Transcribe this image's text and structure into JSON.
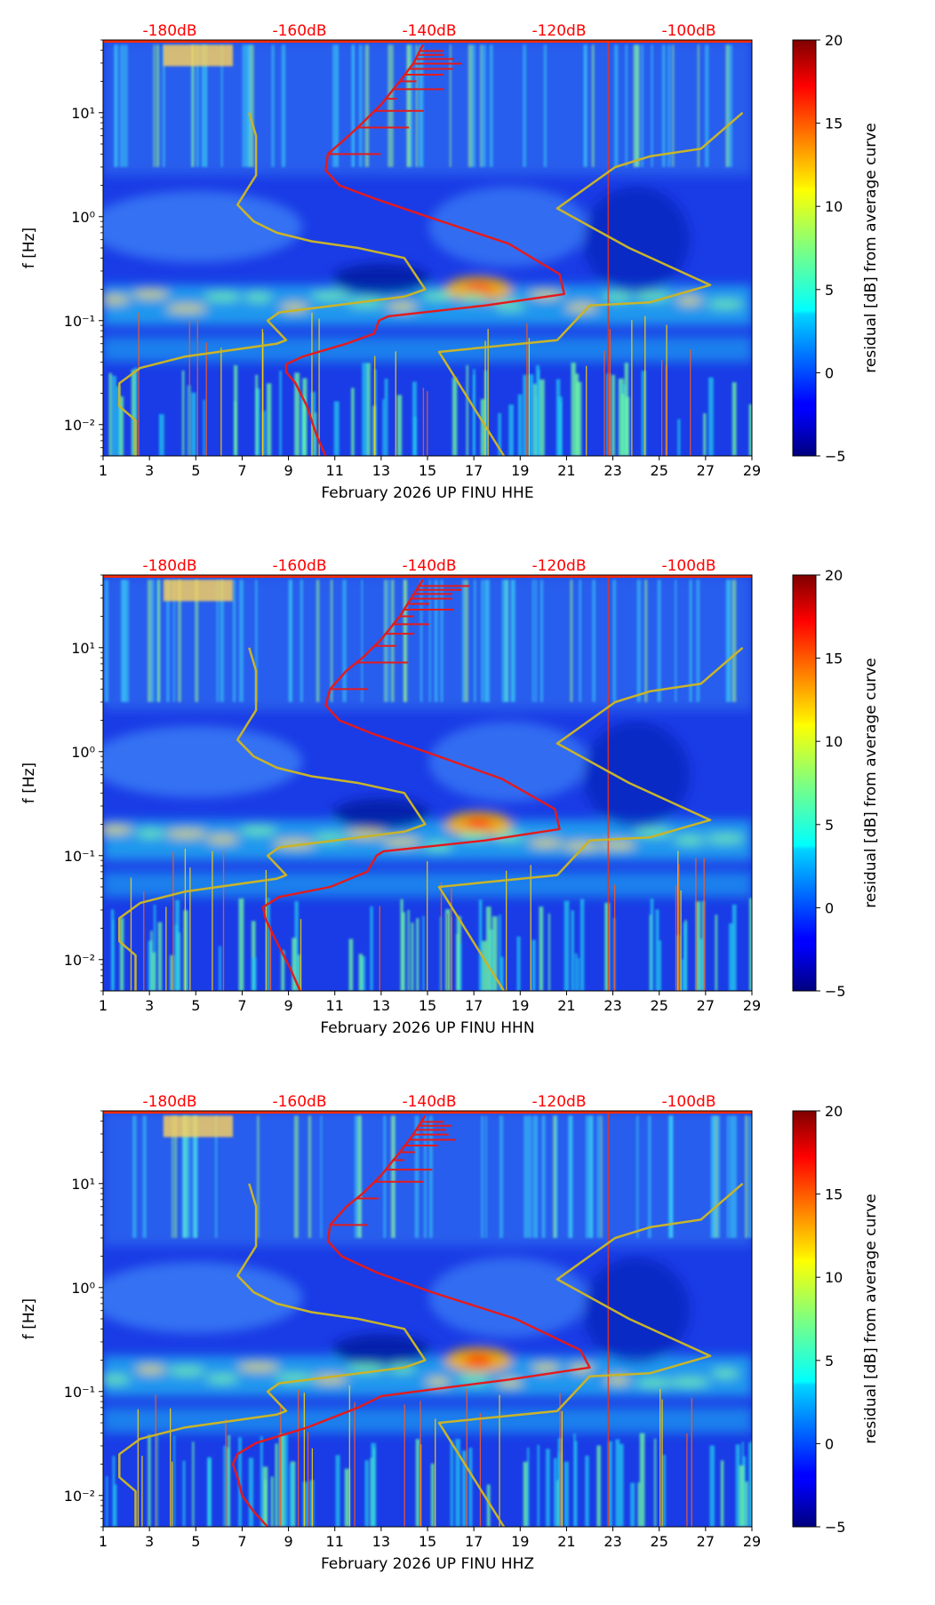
{
  "page": {
    "background": "#ffffff"
  },
  "colors": {
    "axis": "#000000",
    "top_labels": "#ff0000",
    "avg_curve": "#e41a1c",
    "noise_model": "#c8b42a"
  },
  "chart_data": [
    {
      "type": "heatmap",
      "component": "HHE",
      "xlabel": "February 2026 UP FINU  HHE",
      "ylabel": "f [Hz]",
      "x_ticks": [
        "1",
        "3",
        "5",
        "7",
        "9",
        "11",
        "13",
        "15",
        "17",
        "19",
        "21",
        "23",
        "25",
        "27",
        "29"
      ],
      "xlim": [
        1,
        29
      ],
      "y_ticks": [
        "10⁻²",
        "10⁻¹",
        "10⁰",
        "10¹"
      ],
      "y_tick_values": [
        0.01,
        0.1,
        1,
        10
      ],
      "ylim": [
        0.005,
        50
      ],
      "yscale": "log",
      "top_labels": [
        "-180dB",
        "-160dB",
        "-140dB",
        "-120dB",
        "-100dB"
      ],
      "colorbar": {
        "label": "residual [dB] from average curve",
        "ticks": [
          "20",
          "15",
          "10",
          "5",
          "0",
          "−5"
        ],
        "tick_values": [
          20,
          15,
          10,
          5,
          0,
          -5
        ],
        "range": [
          -5,
          20
        ],
        "colormap": "jet"
      },
      "average_curve": {
        "name": "average PSD",
        "x": [
          10.6,
          10.2,
          9.8,
          9.3,
          8.9,
          8.9,
          9.6,
          11.5,
          12.7,
          12.9,
          13.3,
          17.5,
          20.9,
          20.7,
          18.5,
          15.0,
          12.7,
          11.2,
          10.6,
          10.7,
          11.6,
          12.2,
          13.0,
          13.8,
          14.4,
          14.8
        ],
        "y": [
          0.005,
          0.008,
          0.015,
          0.025,
          0.032,
          0.038,
          0.045,
          0.06,
          0.075,
          0.1,
          0.11,
          0.14,
          0.18,
          0.28,
          0.55,
          1.0,
          1.5,
          2.0,
          2.8,
          4.0,
          6.0,
          8.0,
          12.0,
          20.0,
          30.0,
          45.0
        ]
      },
      "noise_model_curve": {
        "name": "noise model",
        "x": [
          7.3,
          7.6,
          7.6,
          6.8,
          7.5,
          8.5,
          10.0,
          12.0,
          14.0,
          14.9,
          14.0,
          11.0,
          8.6,
          8.1,
          8.9,
          8.5,
          4.5,
          2.6,
          1.7,
          1.7,
          2.4,
          2.4
        ],
        "y": [
          10.0,
          6.0,
          2.5,
          1.3,
          0.9,
          0.7,
          0.58,
          0.5,
          0.4,
          0.2,
          0.17,
          0.14,
          0.12,
          0.1,
          0.065,
          0.06,
          0.045,
          0.035,
          0.025,
          0.015,
          0.011,
          0.005
        ]
      },
      "noise_model_curve_2": {
        "name": "noise model",
        "x": [
          28.6,
          26.8,
          24.6,
          23.1,
          20.6,
          23.7,
          27.2,
          24.6,
          22.0,
          20.6,
          15.5,
          18.3
        ],
        "y": [
          10.0,
          4.5,
          3.8,
          3.0,
          1.2,
          0.5,
          0.22,
          0.15,
          0.14,
          0.065,
          0.05,
          0.005
        ]
      }
    },
    {
      "type": "heatmap",
      "component": "HHN",
      "xlabel": "February 2026 UP FINU  HHN",
      "ylabel": "f [Hz]",
      "x_ticks": [
        "1",
        "3",
        "5",
        "7",
        "9",
        "11",
        "13",
        "15",
        "17",
        "19",
        "21",
        "23",
        "25",
        "27",
        "29"
      ],
      "xlim": [
        1,
        29
      ],
      "y_ticks": [
        "10⁻²",
        "10⁻¹",
        "10⁰",
        "10¹"
      ],
      "y_tick_values": [
        0.01,
        0.1,
        1,
        10
      ],
      "ylim": [
        0.005,
        50
      ],
      "yscale": "log",
      "top_labels": [
        "-180dB",
        "-160dB",
        "-140dB",
        "-120dB",
        "-100dB"
      ],
      "colorbar": {
        "label": "residual [dB] from average curve",
        "ticks": [
          "20",
          "15",
          "10",
          "5",
          "0",
          "−5"
        ],
        "tick_values": [
          20,
          15,
          10,
          5,
          0,
          -5
        ],
        "range": [
          -5,
          20
        ],
        "colormap": "jet"
      },
      "average_curve": {
        "name": "average PSD",
        "x": [
          9.5,
          9.1,
          8.7,
          8.3,
          8.0,
          7.9,
          8.6,
          10.8,
          12.4,
          12.8,
          13.1,
          17.5,
          20.7,
          20.5,
          18.2,
          14.9,
          12.6,
          11.2,
          10.6,
          10.8,
          11.5,
          12.2,
          13.0,
          13.8,
          14.3,
          14.8
        ],
        "y": [
          0.005,
          0.008,
          0.012,
          0.018,
          0.025,
          0.032,
          0.04,
          0.05,
          0.07,
          0.1,
          0.11,
          0.14,
          0.18,
          0.28,
          0.55,
          1.0,
          1.5,
          2.0,
          2.8,
          4.0,
          6.0,
          8.0,
          12.0,
          20.0,
          30.0,
          45.0
        ]
      },
      "noise_model_curve": {
        "name": "noise model",
        "x": [
          7.3,
          7.6,
          7.6,
          6.8,
          7.5,
          8.5,
          10.0,
          12.0,
          14.0,
          14.9,
          14.0,
          11.0,
          8.6,
          8.1,
          8.9,
          8.5,
          4.5,
          2.6,
          1.7,
          1.7,
          2.4,
          2.4
        ],
        "y": [
          10.0,
          6.0,
          2.5,
          1.3,
          0.9,
          0.7,
          0.58,
          0.5,
          0.4,
          0.2,
          0.17,
          0.14,
          0.12,
          0.1,
          0.065,
          0.06,
          0.045,
          0.035,
          0.025,
          0.015,
          0.011,
          0.005
        ]
      },
      "noise_model_curve_2": {
        "name": "noise model",
        "x": [
          28.6,
          26.8,
          24.6,
          23.1,
          20.6,
          23.7,
          27.2,
          24.6,
          22.0,
          20.6,
          15.5,
          18.3
        ],
        "y": [
          10.0,
          4.5,
          3.8,
          3.0,
          1.2,
          0.5,
          0.22,
          0.15,
          0.14,
          0.065,
          0.05,
          0.005
        ]
      }
    },
    {
      "type": "heatmap",
      "component": "HHZ",
      "xlabel": "February 2026 UP FINU  HHZ",
      "ylabel": "f [Hz]",
      "x_ticks": [
        "1",
        "3",
        "5",
        "7",
        "9",
        "11",
        "13",
        "15",
        "17",
        "19",
        "21",
        "23",
        "25",
        "27",
        "29"
      ],
      "xlim": [
        1,
        29
      ],
      "y_ticks": [
        "10⁻²",
        "10⁻¹",
        "10⁰",
        "10¹"
      ],
      "y_tick_values": [
        0.01,
        0.1,
        1,
        10
      ],
      "ylim": [
        0.005,
        50
      ],
      "yscale": "log",
      "top_labels": [
        "-180dB",
        "-160dB",
        "-140dB",
        "-120dB",
        "-100dB"
      ],
      "colorbar": {
        "label": "residual [dB] from average curve",
        "ticks": [
          "20",
          "15",
          "10",
          "5",
          "0",
          "−5"
        ],
        "tick_values": [
          20,
          15,
          10,
          5,
          0,
          -5
        ],
        "range": [
          -5,
          20
        ],
        "colormap": "jet"
      },
      "average_curve": {
        "name": "average PSD",
        "x": [
          8.1,
          7.5,
          7.0,
          6.8,
          6.6,
          6.8,
          7.6,
          9.8,
          12.0,
          13.0,
          14.5,
          18.5,
          22.0,
          21.6,
          18.8,
          15.2,
          12.8,
          11.3,
          10.7,
          10.8,
          11.5,
          12.2,
          13.0,
          13.8,
          14.4,
          14.9
        ],
        "y": [
          0.005,
          0.007,
          0.01,
          0.015,
          0.02,
          0.025,
          0.032,
          0.045,
          0.07,
          0.09,
          0.1,
          0.13,
          0.17,
          0.25,
          0.5,
          0.9,
          1.4,
          2.0,
          2.8,
          4.0,
          6.0,
          8.0,
          12.0,
          20.0,
          30.0,
          45.0
        ]
      },
      "noise_model_curve": {
        "name": "noise model",
        "x": [
          7.3,
          7.6,
          7.6,
          6.8,
          7.5,
          8.5,
          10.0,
          12.0,
          14.0,
          14.9,
          14.0,
          11.0,
          8.6,
          8.1,
          8.9,
          8.5,
          4.5,
          2.6,
          1.7,
          1.7,
          2.4,
          2.4
        ],
        "y": [
          10.0,
          6.0,
          2.5,
          1.3,
          0.9,
          0.7,
          0.58,
          0.5,
          0.4,
          0.2,
          0.17,
          0.14,
          0.12,
          0.1,
          0.065,
          0.06,
          0.045,
          0.035,
          0.025,
          0.015,
          0.011,
          0.005
        ]
      },
      "noise_model_curve_2": {
        "name": "noise model",
        "x": [
          28.6,
          26.8,
          24.6,
          23.1,
          20.6,
          23.7,
          27.2,
          24.6,
          22.0,
          20.6,
          15.5,
          18.3
        ],
        "y": [
          10.0,
          4.5,
          3.8,
          3.0,
          1.2,
          0.5,
          0.22,
          0.15,
          0.14,
          0.065,
          0.05,
          0.005
        ]
      }
    }
  ]
}
